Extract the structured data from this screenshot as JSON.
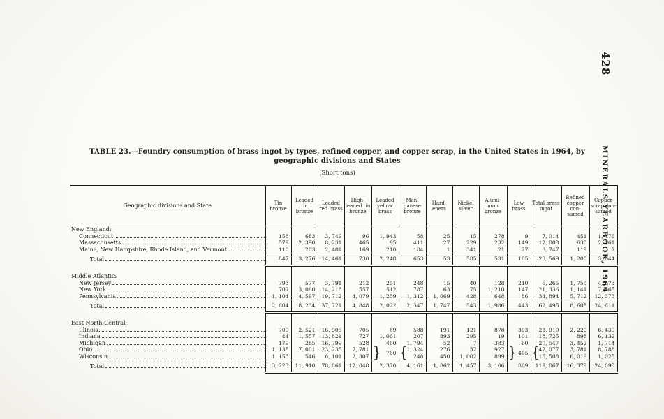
{
  "page": {
    "page_number": "428",
    "margin_text": "MINERALS YEARBOOK, 1964"
  },
  "table": {
    "title": "TABLE 23.—Foundry consumption of brass ingot by types, refined copper, and copper scrap, in the United States in 1964, by geographic divisions and States",
    "subtitle": "(Short tons)",
    "columns": [
      "Geographic divisions and State",
      "Tin bronze",
      "Leaded tin bronze",
      "Leaded red brass",
      "High-leaded tin bronze",
      "Leaded yellow brass",
      "Man-ganese bronze",
      "Hard-eners",
      "Nickel silver",
      "Alumi-num bronze",
      "Low brass",
      "Total brass ingot",
      "Refined copper con-sumed",
      "Copper scrap con-sumed"
    ],
    "sections": [
      {
        "heading": "New England:",
        "rows": [
          {
            "label": "Connecticut",
            "values": [
              "158",
              "683",
              "3, 749",
              "96",
              "1, 943",
              "58",
              "25",
              "15",
              "278",
              "9",
              "7, 014",
              "451",
              "1, 476"
            ]
          },
          {
            "label": "Massachusetts",
            "values": [
              "579",
              "2, 390",
              "8, 231",
              "465",
              "95",
              "411",
              "27",
              "229",
              "232",
              "149",
              "12, 808",
              "630",
              "2, 161"
            ]
          },
          {
            "label": "Maine, New Hampshire, Rhode Island, and Vermont",
            "values": [
              "110",
              "203",
              "2, 481",
              "169",
              "210",
              "184",
              "1",
              "341",
              "21",
              "27",
              "3, 747",
              "119",
              "7"
            ]
          }
        ],
        "total": {
          "label": "Total",
          "values": [
            "847",
            "3, 276",
            "14, 461",
            "730",
            "2, 248",
            "653",
            "53",
            "585",
            "531",
            "185",
            "23, 569",
            "1, 200",
            "3, 644"
          ]
        }
      },
      {
        "heading": "Middle Atlantic:",
        "rows": [
          {
            "label": "New Jersey",
            "values": [
              "793",
              "577",
              "3, 791",
              "212",
              "251",
              "248",
              "15",
              "40",
              "128",
              "210",
              "6, 265",
              "1, 755",
              "4, 673"
            ]
          },
          {
            "label": "New York",
            "values": [
              "707",
              "3, 060",
              "14, 218",
              "557",
              "512",
              "787",
              "63",
              "75",
              "1, 210",
              "147",
              "21, 336",
              "1, 141",
              "7, 565"
            ]
          },
          {
            "label": "Pennsylvania",
            "values": [
              "1, 104",
              "4, 597",
              "19, 712",
              "4, 079",
              "1, 259",
              "1, 312",
              "1, 669",
              "428",
              "648",
              "86",
              "34, 894",
              "5, 712",
              "12, 373"
            ]
          }
        ],
        "total": {
          "label": "Total",
          "values": [
            "2, 604",
            "8, 234",
            "37, 721",
            "4, 848",
            "2, 022",
            "2, 347",
            "1, 747",
            "543",
            "1, 986",
            "443",
            "62, 495",
            "8, 608",
            "24, 611"
          ]
        }
      },
      {
        "heading": "East North-Central:",
        "rows": [
          {
            "label": "Illinois",
            "values": [
              "709",
              "2, 521",
              "16, 905",
              "705",
              "89",
              "588",
              "191",
              "121",
              "878",
              "303",
              "23, 010",
              "2, 229",
              "6, 439"
            ]
          },
          {
            "label": "Indiana",
            "values": [
              "44",
              "1, 557",
              "13, 821",
              "727",
              "1, 061",
              "207",
              "893",
              "295",
              "19",
              "101",
              "18, 725",
              "898",
              "6, 132"
            ]
          },
          {
            "label": "Michigan",
            "values": [
              "179",
              "285",
              "16, 799",
              "528",
              "460",
              "1, 794",
              "52",
              "7",
              "383",
              "60",
              "20, 547",
              "3, 452",
              "1, 714"
            ]
          },
          {
            "label": "Ohio",
            "values": [
              "1, 138",
              "7, 001",
              "23, 235",
              "7, 781",
              "",
              "1, 324",
              "276",
              "32",
              "927",
              "",
              "42, 077",
              "3, 781",
              "8, 788"
            ]
          },
          {
            "label": "Wisconsin",
            "values": [
              "1, 153",
              "546",
              "8, 101",
              "2, 307",
              "",
              "248",
              "450",
              "1, 002",
              "899",
              "",
              "15, 508",
              "6, 019",
              "1, 025"
            ]
          }
        ],
        "braces": [
          {
            "row_index": 3,
            "col": 4,
            "glyph": "}",
            "combined": "760"
          },
          {
            "row_index": 3,
            "col": 5,
            "glyph": "{"
          },
          {
            "row_index": 3,
            "col": 9,
            "glyph": "}",
            "combined": "405"
          },
          {
            "row_index": 3,
            "col": 10,
            "glyph": "{"
          }
        ],
        "total": {
          "label": "Total",
          "values": [
            "3, 223",
            "11, 910",
            "78, 861",
            "12, 048",
            "2, 370",
            "4, 161",
            "1, 862",
            "1, 457",
            "3, 106",
            "869",
            "119, 867",
            "16, 379",
            "24, 098"
          ]
        }
      }
    ]
  }
}
